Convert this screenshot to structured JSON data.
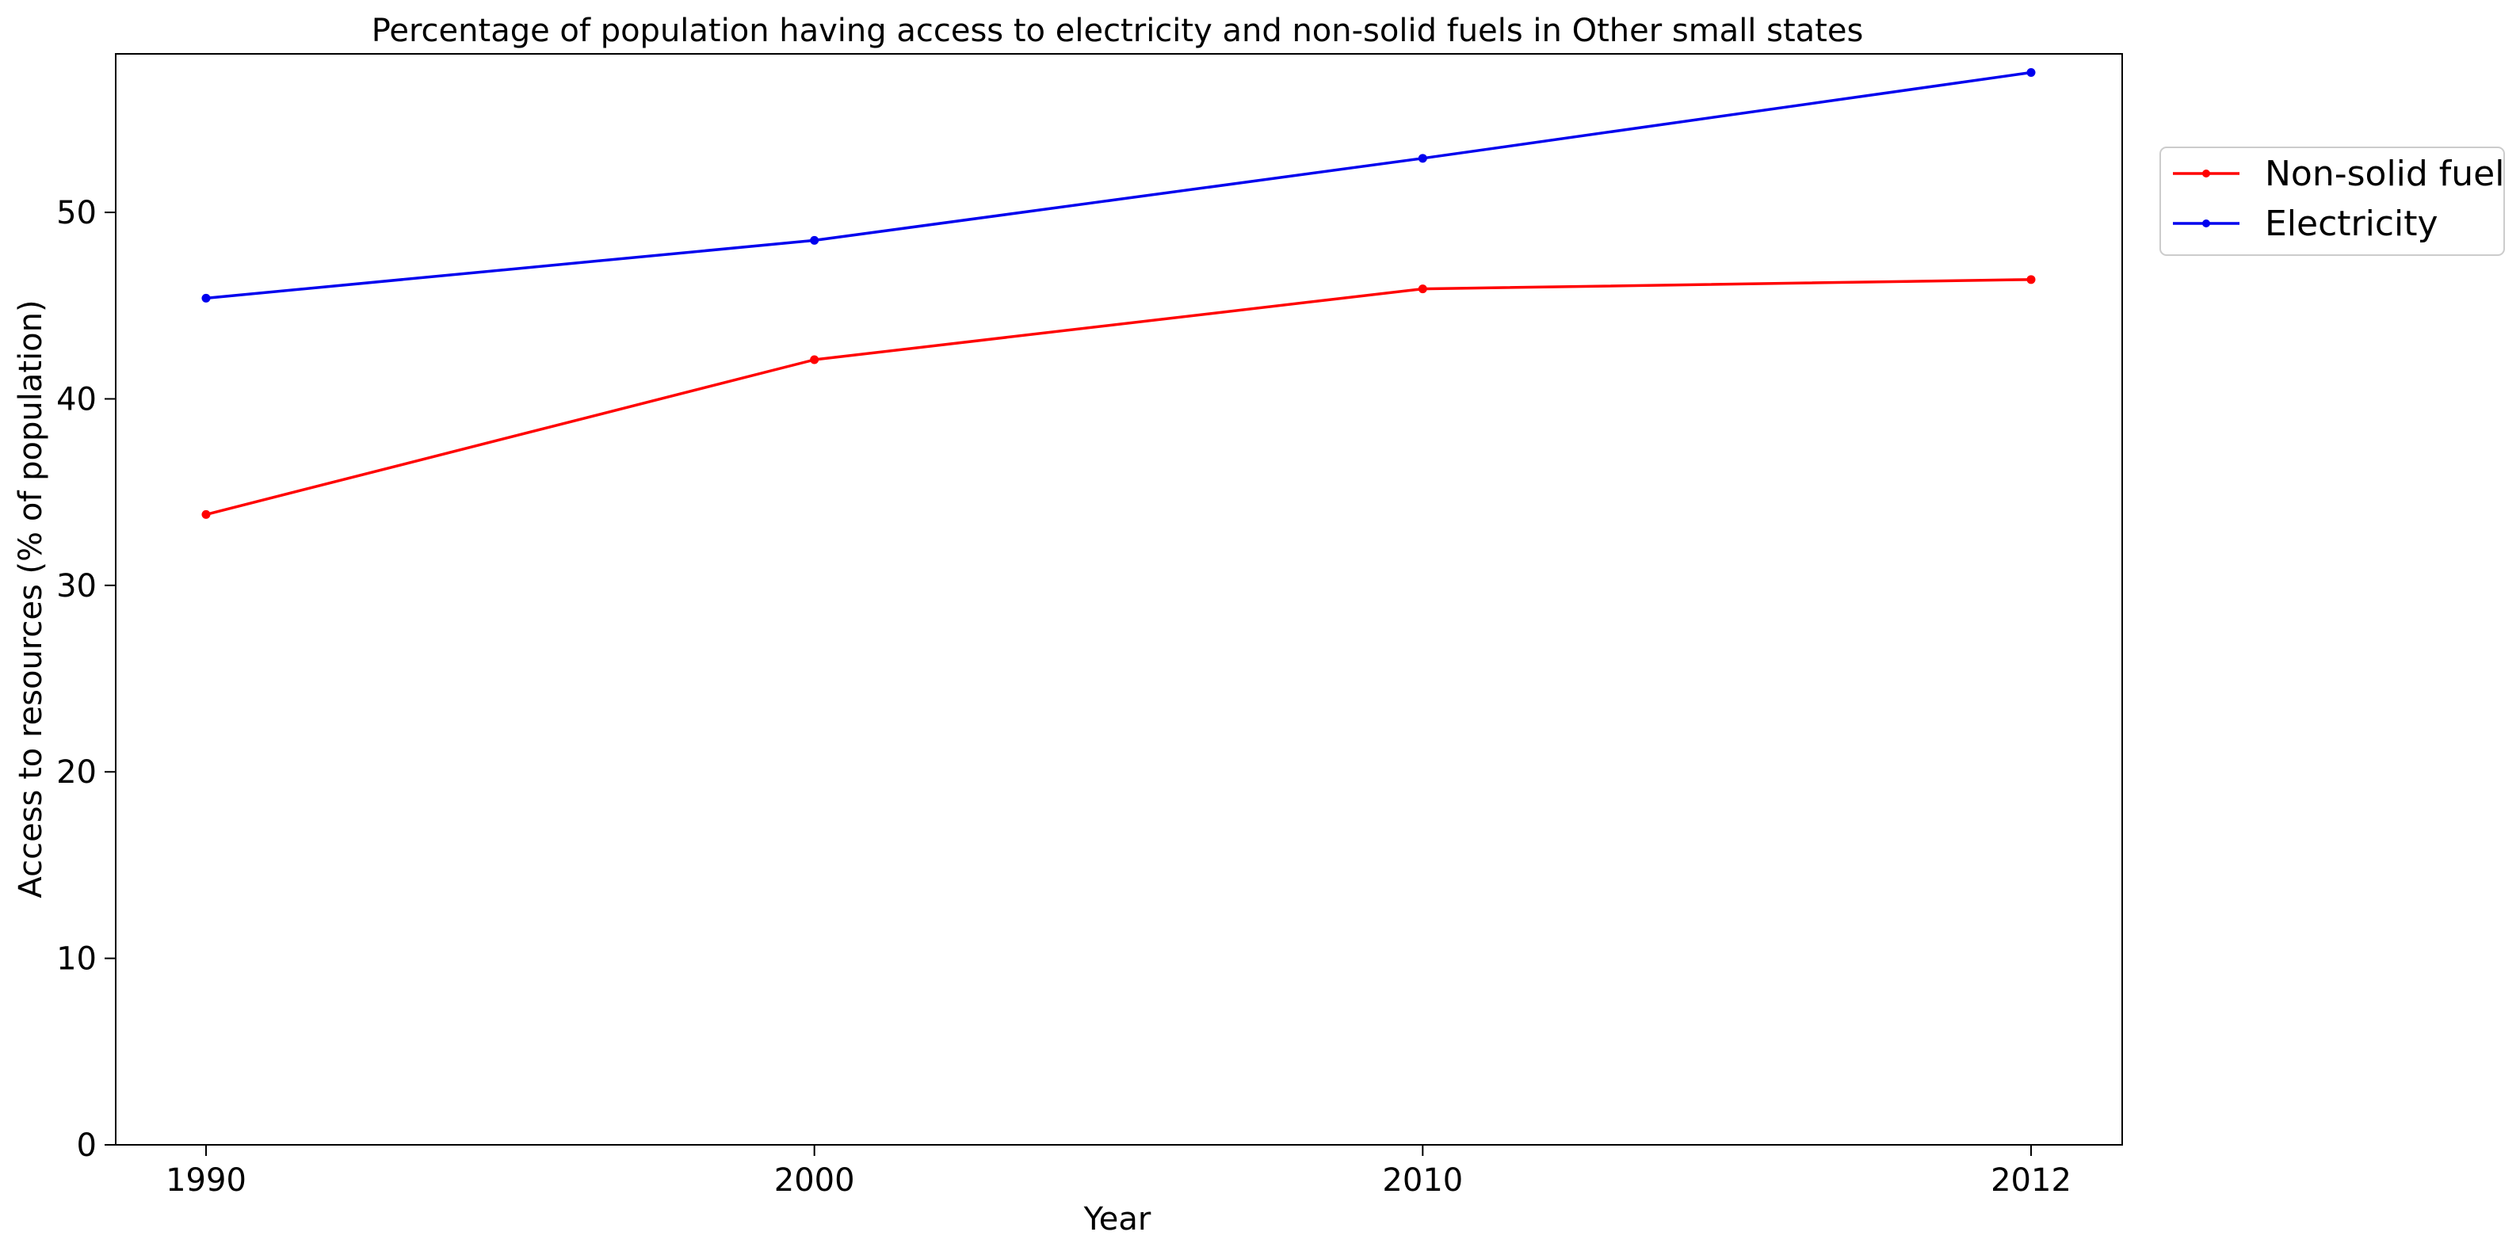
{
  "chart_data": {
    "type": "line",
    "title": "Percentage of population having access to electricity and non-solid fuels in Other small states",
    "xlabel": "Year",
    "ylabel": "Access to resources (% of population)",
    "categories": [
      "1990",
      "2000",
      "2010",
      "2012"
    ],
    "ylim": [
      0,
      58.5
    ],
    "yticks": [
      0,
      10,
      20,
      30,
      40,
      50
    ],
    "grid": false,
    "legend_position": "outside-top-right",
    "series": [
      {
        "name": "Non-solid fuel",
        "color": "#ff0000",
        "values": [
          33.8,
          42.1,
          45.9,
          46.4
        ]
      },
      {
        "name": "Electricity",
        "color": "#0000ee",
        "values": [
          45.4,
          48.5,
          52.9,
          57.5
        ]
      }
    ]
  }
}
